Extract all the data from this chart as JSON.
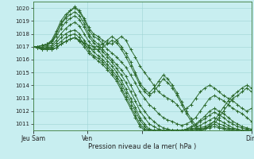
{
  "background_color": "#c8eef0",
  "grid_color": "#9ed4d4",
  "line_color": "#2d6a2d",
  "xlabel": "Pression niveau de la mer( hPa )",
  "ylim": [
    1010.5,
    1020.5
  ],
  "yticks": [
    1011,
    1012,
    1013,
    1014,
    1015,
    1016,
    1017,
    1018,
    1019,
    1020
  ],
  "xlim": [
    0,
    96
  ],
  "xtick_positions": [
    0,
    24,
    48,
    96
  ],
  "xtick_labels": [
    "Jeu Sam",
    "Ven",
    "",
    "Dim"
  ],
  "series": [
    [
      1017.0,
      1017.0,
      1017.1,
      1017.2,
      1017.3,
      1018.0,
      1018.8,
      1019.3,
      1019.8,
      1020.1,
      1019.8,
      1019.2,
      1018.5,
      1018.0,
      1017.8,
      1017.5,
      1017.3,
      1017.2,
      1017.5,
      1017.8,
      1017.5,
      1016.8,
      1016.2,
      1015.5,
      1015.0,
      1014.5,
      1014.0,
      1013.5,
      1013.2,
      1013.0,
      1012.8,
      1012.5,
      1012.0,
      1012.2,
      1012.5,
      1013.0,
      1013.5,
      1013.8,
      1014.0,
      1013.8,
      1013.5,
      1013.2,
      1013.0,
      1012.8,
      1012.5,
      1012.2,
      1012.0,
      1012.2
    ],
    [
      1017.0,
      1017.0,
      1017.1,
      1017.2,
      1017.5,
      1018.2,
      1019.0,
      1019.5,
      1019.8,
      1020.0,
      1019.7,
      1019.1,
      1018.3,
      1017.8,
      1017.6,
      1017.2,
      1016.8,
      1016.5,
      1016.2,
      1015.8,
      1015.4,
      1014.8,
      1014.2,
      1013.5,
      1013.0,
      1012.5,
      1012.2,
      1011.8,
      1011.5,
      1011.3,
      1011.2,
      1011.0,
      1010.9,
      1011.0,
      1011.2,
      1011.5,
      1012.0,
      1012.5,
      1013.0,
      1013.2,
      1013.0,
      1012.8,
      1012.5,
      1012.2,
      1012.0,
      1011.8,
      1011.5,
      1011.2
    ],
    [
      1017.0,
      1017.0,
      1017.1,
      1017.2,
      1017.4,
      1018.0,
      1018.7,
      1019.2,
      1019.5,
      1019.7,
      1019.4,
      1018.8,
      1018.0,
      1017.5,
      1017.2,
      1016.8,
      1016.4,
      1016.0,
      1015.6,
      1015.2,
      1014.7,
      1014.0,
      1013.3,
      1012.5,
      1012.0,
      1011.5,
      1011.2,
      1010.9,
      1010.7,
      1010.6,
      1010.5,
      1010.5,
      1010.5,
      1010.6,
      1010.8,
      1011.0,
      1011.3,
      1011.6,
      1012.0,
      1012.2,
      1012.0,
      1011.8,
      1011.5,
      1011.2,
      1011.0,
      1010.8,
      1010.7,
      1010.6
    ],
    [
      1017.0,
      1017.0,
      1017.1,
      1017.1,
      1017.3,
      1017.8,
      1018.4,
      1018.9,
      1019.2,
      1019.4,
      1019.1,
      1018.5,
      1017.8,
      1017.3,
      1017.0,
      1016.6,
      1016.2,
      1015.8,
      1015.3,
      1014.8,
      1014.2,
      1013.5,
      1012.8,
      1012.0,
      1011.5,
      1011.0,
      1010.8,
      1010.6,
      1010.5,
      1010.5,
      1010.5,
      1010.5,
      1010.5,
      1010.6,
      1010.7,
      1010.9,
      1011.2,
      1011.4,
      1011.7,
      1011.9,
      1011.7,
      1011.5,
      1011.2,
      1011.0,
      1010.8,
      1010.7,
      1010.6,
      1010.5
    ],
    [
      1017.0,
      1016.9,
      1017.0,
      1017.0,
      1017.1,
      1017.5,
      1018.0,
      1018.4,
      1018.7,
      1018.9,
      1018.6,
      1018.0,
      1017.4,
      1017.0,
      1016.7,
      1016.3,
      1015.9,
      1015.5,
      1015.0,
      1014.4,
      1013.7,
      1013.0,
      1012.3,
      1011.5,
      1011.0,
      1010.6,
      1010.5,
      1010.5,
      1010.5,
      1010.5,
      1010.5,
      1010.5,
      1010.5,
      1010.5,
      1010.6,
      1010.7,
      1010.9,
      1011.1,
      1011.3,
      1011.5,
      1011.3,
      1011.1,
      1010.9,
      1010.7,
      1010.6,
      1010.5,
      1010.5,
      1010.5
    ],
    [
      1017.0,
      1016.9,
      1016.9,
      1016.9,
      1017.0,
      1017.3,
      1017.7,
      1018.0,
      1018.2,
      1018.3,
      1018.0,
      1017.5,
      1017.0,
      1016.6,
      1016.3,
      1016.0,
      1015.6,
      1015.2,
      1014.7,
      1014.1,
      1013.4,
      1012.7,
      1012.0,
      1011.3,
      1010.8,
      1010.5,
      1010.5,
      1010.5,
      1010.5,
      1010.5,
      1010.5,
      1010.5,
      1010.5,
      1010.5,
      1010.5,
      1010.6,
      1010.7,
      1010.8,
      1011.0,
      1011.2,
      1011.0,
      1010.9,
      1010.7,
      1010.6,
      1010.5,
      1010.5,
      1010.5,
      1010.5
    ],
    [
      1017.0,
      1016.9,
      1016.9,
      1016.9,
      1016.9,
      1017.1,
      1017.4,
      1017.7,
      1017.9,
      1018.0,
      1017.7,
      1017.2,
      1016.7,
      1016.3,
      1016.1,
      1015.8,
      1015.4,
      1015.0,
      1014.5,
      1013.8,
      1013.1,
      1012.4,
      1011.7,
      1011.0,
      1010.6,
      1010.5,
      1010.5,
      1010.5,
      1010.5,
      1010.5,
      1010.5,
      1010.5,
      1010.5,
      1010.5,
      1010.5,
      1010.5,
      1010.6,
      1010.7,
      1010.8,
      1011.0,
      1010.8,
      1010.7,
      1010.6,
      1010.5,
      1010.5,
      1010.5,
      1010.5,
      1010.5
    ],
    [
      1017.0,
      1016.9,
      1016.8,
      1016.8,
      1016.8,
      1016.9,
      1017.2,
      1017.4,
      1017.6,
      1017.7,
      1017.4,
      1017.0,
      1016.5,
      1016.2,
      1015.9,
      1015.6,
      1015.2,
      1014.8,
      1014.3,
      1013.6,
      1012.9,
      1012.2,
      1011.5,
      1010.8,
      1010.5,
      1010.5,
      1010.5,
      1010.5,
      1010.5,
      1010.5,
      1010.5,
      1010.5,
      1010.5,
      1010.5,
      1010.5,
      1010.5,
      1010.5,
      1010.6,
      1010.7,
      1010.8,
      1010.7,
      1010.6,
      1010.5,
      1010.5,
      1010.5,
      1010.5,
      1010.5,
      1010.5
    ],
    [
      1017.0,
      1016.9,
      1016.8,
      1016.8,
      1016.8,
      1016.9,
      1017.2,
      1017.4,
      1017.6,
      1017.7,
      1017.5,
      1017.2,
      1016.9,
      1016.8,
      1016.8,
      1017.0,
      1017.2,
      1017.5,
      1017.3,
      1016.8,
      1016.2,
      1015.5,
      1014.8,
      1014.0,
      1013.5,
      1013.2,
      1013.5,
      1014.0,
      1014.5,
      1014.2,
      1013.8,
      1013.2,
      1012.5,
      1011.8,
      1011.2,
      1010.7,
      1010.5,
      1010.6,
      1010.8,
      1011.0,
      1011.5,
      1012.0,
      1012.5,
      1013.0,
      1013.2,
      1013.5,
      1013.8,
      1013.5
    ],
    [
      1017.0,
      1016.9,
      1016.8,
      1016.8,
      1016.8,
      1016.9,
      1017.2,
      1017.4,
      1017.6,
      1017.7,
      1017.5,
      1017.3,
      1017.1,
      1017.0,
      1017.0,
      1017.2,
      1017.5,
      1017.8,
      1017.5,
      1017.0,
      1016.5,
      1015.8,
      1015.0,
      1014.2,
      1013.7,
      1013.4,
      1013.8,
      1014.3,
      1014.8,
      1014.5,
      1014.0,
      1013.4,
      1012.7,
      1012.0,
      1011.4,
      1010.9,
      1010.5,
      1010.6,
      1010.9,
      1011.2,
      1011.8,
      1012.3,
      1012.8,
      1013.2,
      1013.5,
      1013.8,
      1014.0,
      1013.8
    ]
  ]
}
